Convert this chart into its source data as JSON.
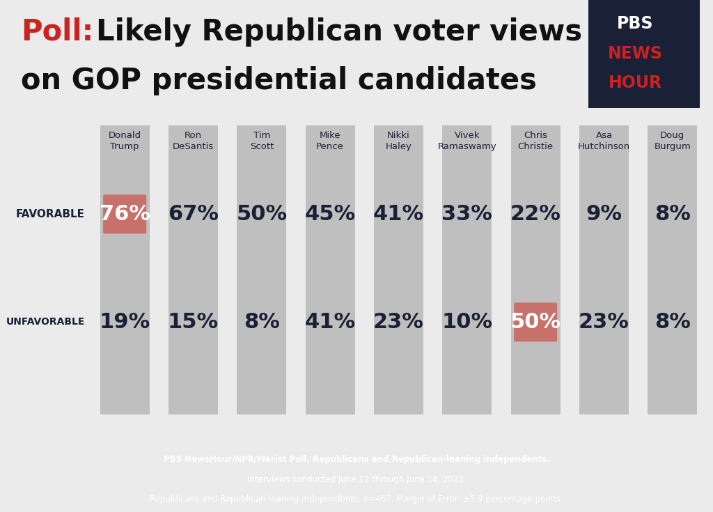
{
  "background_color": "#ebebeb",
  "footer_background": "#1e2535",
  "footer_text_line1": "PBS NewsHour/NPR/Marist Poll, Republicans and Republican-leaning independents.",
  "footer_text_line2": "Interviews conducted June 12 through June 14, 2023.",
  "footer_text_line3": "Republicans and Republican-leaning independents: n=467. Margin of Error: ±5.9 percentage points.",
  "candidates": [
    "Donald\nTrump",
    "Ron\nDeSantis",
    "Tim\nScott",
    "Mike\nPence",
    "Nikki\nHaley",
    "Vivek\nRamaswamy",
    "Chris\nChristie",
    "Asa\nHutchinson",
    "Doug\nBurgum"
  ],
  "favorable": [
    76,
    67,
    50,
    45,
    41,
    33,
    22,
    9,
    8
  ],
  "unfavorable": [
    19,
    15,
    8,
    41,
    23,
    10,
    50,
    23,
    8
  ],
  "highlight_favorable": [
    0
  ],
  "highlight_unfavorable": [
    6
  ],
  "highlight_color": "#c8706a",
  "col_bg_color": "#c0bfbf",
  "text_color_dark": "#1a2035",
  "favorable_label": "FAVORABLE",
  "unfavorable_label": "UNFAVORABLE",
  "red_color": "#cc2222",
  "title_red_color": "#cc2222",
  "title_black_color": "#111111",
  "logo_bg": "#1a2035",
  "logo_red": "#cc2222"
}
